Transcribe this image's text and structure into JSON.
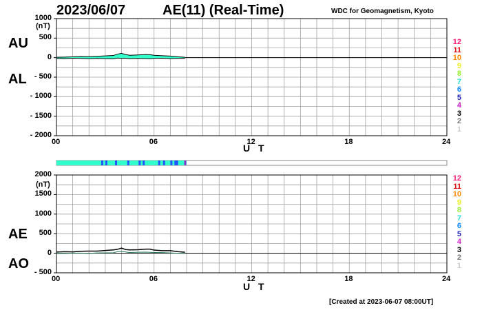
{
  "header": {
    "date": "2023/06/07",
    "title": "AE(11) (Real-Time)",
    "source": "WDC for Geomagnetism, Kyoto"
  },
  "footer": {
    "created": "[Created at 2023-06-07 08:00UT]"
  },
  "colors": {
    "grid": "#a0a0a0",
    "fill": "#33ffcc",
    "line": "#000000",
    "marker_blue": "#2255ff",
    "marker_end": "#8833cc"
  },
  "legend": [
    {
      "label": "12",
      "color": "#ff1a75"
    },
    {
      "label": "11",
      "color": "#dd1111"
    },
    {
      "label": "10",
      "color": "#ff8800"
    },
    {
      "label": "9",
      "color": "#eeee22"
    },
    {
      "label": "8",
      "color": "#99ee33"
    },
    {
      "label": "7",
      "color": "#22dddd"
    },
    {
      "label": "6",
      "color": "#1188ff"
    },
    {
      "label": "5",
      "color": "#2222bb"
    },
    {
      "label": "4",
      "color": "#cc22cc"
    },
    {
      "label": "3",
      "color": "#000000"
    },
    {
      "label": "2",
      "color": "#777777"
    },
    {
      "label": "1",
      "color": "#cccccc"
    }
  ],
  "coverage_bar": {
    "hours_covered": 8.0,
    "station_marks": [
      2.75,
      3.0,
      3.6,
      4.35,
      5.05,
      5.3,
      6.25,
      6.55,
      7.0,
      7.25,
      7.35,
      7.85
    ]
  },
  "chart_data": [
    {
      "type": "area",
      "panel": "AU/AL",
      "labels": {
        "upper": "AU",
        "lower": "AL"
      },
      "unit": "(nT)",
      "xlabel": "U T",
      "x_ticks": [
        "00",
        "06",
        "12",
        "18",
        "24"
      ],
      "y_ticks": [
        "1000",
        "500",
        "0",
        "- 500",
        "- 1000",
        "- 1500",
        "- 2000"
      ],
      "xlim": [
        0,
        24
      ],
      "ylim": [
        -2000,
        1000
      ],
      "x": [
        0,
        0.5,
        1,
        1.5,
        2,
        2.5,
        3,
        3.5,
        3.75,
        4,
        4.25,
        4.5,
        5,
        5.5,
        5.75,
        6,
        6.5,
        7,
        7.5,
        7.9
      ],
      "series": [
        {
          "name": "AU",
          "values": [
            10,
            15,
            20,
            30,
            25,
            35,
            45,
            55,
            90,
            110,
            80,
            60,
            70,
            80,
            75,
            60,
            50,
            40,
            20,
            10
          ]
        },
        {
          "name": "AL",
          "values": [
            -20,
            -25,
            -15,
            -20,
            -30,
            -20,
            -25,
            -30,
            -10,
            -20,
            -15,
            -25,
            -20,
            -25,
            -30,
            -20,
            -15,
            -25,
            -20,
            -15
          ]
        }
      ]
    },
    {
      "type": "line",
      "panel": "AE/AO",
      "labels": {
        "upper": "AE",
        "lower": "AO"
      },
      "unit": "(nT)",
      "xlabel": "U T",
      "x_ticks": [
        "00",
        "06",
        "12",
        "18",
        "24"
      ],
      "y_ticks": [
        "2000",
        "1500",
        "1000",
        "500",
        "0",
        "- 500"
      ],
      "xlim": [
        0,
        24
      ],
      "ylim": [
        -500,
        2000
      ],
      "x": [
        0,
        0.5,
        1,
        1.5,
        2,
        2.5,
        3,
        3.5,
        3.75,
        4,
        4.25,
        4.5,
        5,
        5.5,
        5.75,
        6,
        6.5,
        7,
        7.5,
        7.9
      ],
      "series": [
        {
          "name": "AE",
          "values": [
            30,
            40,
            35,
            50,
            55,
            55,
            70,
            85,
            100,
            130,
            95,
            85,
            90,
            105,
            105,
            80,
            65,
            65,
            40,
            25
          ]
        },
        {
          "name": "AO",
          "values": [
            -5,
            -5,
            3,
            5,
            -3,
            8,
            10,
            13,
            40,
            45,
            33,
            18,
            25,
            28,
            23,
            20,
            18,
            8,
            0,
            -3
          ]
        }
      ]
    }
  ]
}
